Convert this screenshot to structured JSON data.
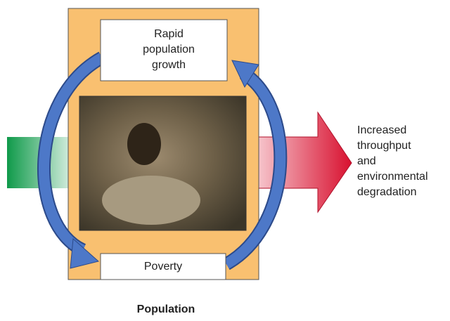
{
  "nodes": [
    {
      "lines": [
        "Rapid",
        "population",
        "growth"
      ]
    },
    {
      "lines": [
        "Poverty"
      ]
    }
  ],
  "output": {
    "lines": [
      "Increased",
      "throughput",
      "and",
      "environmental",
      "degradation"
    ]
  },
  "caption": "Population"
}
